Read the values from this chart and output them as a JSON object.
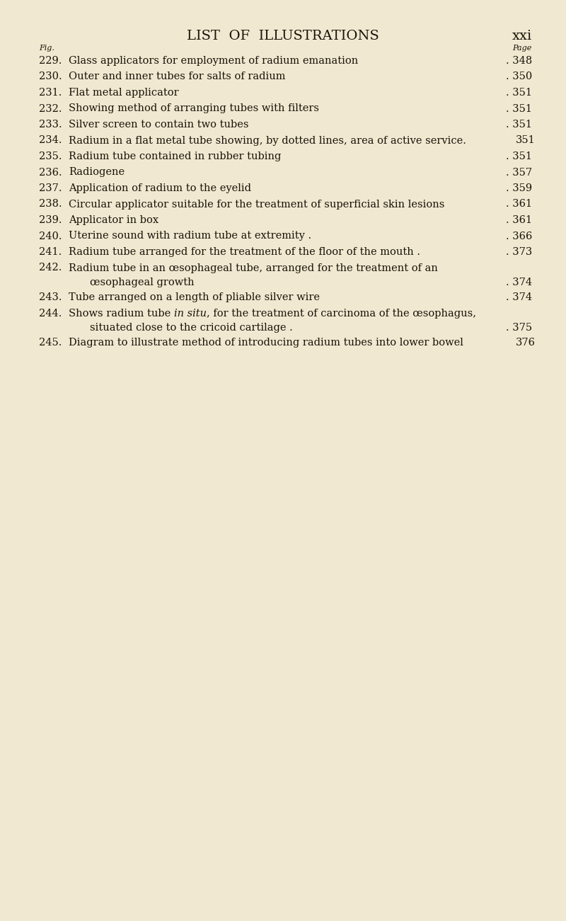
{
  "bg_color": "#f0e8d0",
  "text_color": "#1a1208",
  "title": "LIST  OF  ILLUSTRATIONS",
  "title_right": "xxi",
  "col_left_label": "Fig.",
  "col_right_label": "Page",
  "entries": [
    {
      "num": "229.",
      "text": "Glass applicators for employment of radium emanation",
      "continuation": null,
      "page": "348",
      "italic_phrase": null,
      "italic_after": null,
      "has_dots": true
    },
    {
      "num": "230.",
      "text": "Outer and inner tubes for salts of radium",
      "continuation": null,
      "page": "350",
      "italic_phrase": null,
      "italic_after": null,
      "has_dots": true
    },
    {
      "num": "231.",
      "text": "Flat metal applicator",
      "continuation": null,
      "page": "351",
      "italic_phrase": null,
      "italic_after": null,
      "has_dots": true
    },
    {
      "num": "232.",
      "text": "Showing method of arranging tubes with filters",
      "continuation": null,
      "page": "351",
      "italic_phrase": null,
      "italic_after": null,
      "has_dots": true
    },
    {
      "num": "233.",
      "text": "Silver screen to contain two tubes",
      "continuation": null,
      "page": "351",
      "italic_phrase": null,
      "italic_after": null,
      "has_dots": true
    },
    {
      "num": "234.",
      "text": "Radium in a flat metal tube showing, by dotted lines, area of active service.",
      "continuation": null,
      "page": "351",
      "italic_phrase": null,
      "italic_after": null,
      "has_dots": false
    },
    {
      "num": "235.",
      "text": "Radium tube contained in rubber tubing",
      "continuation": null,
      "page": "351",
      "italic_phrase": null,
      "italic_after": null,
      "has_dots": true
    },
    {
      "num": "236.",
      "text": "Radiogene",
      "continuation": null,
      "page": "357",
      "italic_phrase": null,
      "italic_after": null,
      "has_dots": true
    },
    {
      "num": "237.",
      "text": "Application of radium to the eyelid",
      "continuation": null,
      "page": "359",
      "italic_phrase": null,
      "italic_after": null,
      "has_dots": true
    },
    {
      "num": "238.",
      "text": "Circular applicator suitable for the treatment of superficial skin lesions",
      "continuation": null,
      "page": "361",
      "italic_phrase": null,
      "italic_after": null,
      "has_dots": true
    },
    {
      "num": "239.",
      "text": "Applicator in box",
      "continuation": null,
      "page": "361",
      "italic_phrase": null,
      "italic_after": null,
      "has_dots": true
    },
    {
      "num": "240.",
      "text": "Uterine sound with radium tube at extremity .",
      "continuation": null,
      "page": "366",
      "italic_phrase": null,
      "italic_after": null,
      "has_dots": true
    },
    {
      "num": "241.",
      "text": "Radium tube arranged for the treatment of the floor of the mouth .",
      "continuation": null,
      "page": "373",
      "italic_phrase": null,
      "italic_after": null,
      "has_dots": true
    },
    {
      "num": "242.",
      "text": "Radium tube in an œsophageal tube, arranged for the treatment of an",
      "continuation": "œsophageal growth",
      "page": "374",
      "italic_phrase": null,
      "italic_after": null,
      "has_dots": true
    },
    {
      "num": "243.",
      "text": "Tube arranged on a length of pliable silver wire",
      "continuation": null,
      "page": "374",
      "italic_phrase": null,
      "italic_after": null,
      "has_dots": true
    },
    {
      "num": "244.",
      "text_before_italic": "Shows radium tube ",
      "text_italic": "in situ",
      "text": ", for the treatment of carcinoma of the œsophagus,",
      "continuation": "situated close to the cricoid cartilage .",
      "page": "375",
      "italic_phrase": "in situ",
      "italic_after": ", for the treatment of carcinoma of the œsophagus,",
      "has_dots": true
    },
    {
      "num": "245.",
      "text": "Diagram to illustrate method of introducing radium tubes into lower bowel",
      "continuation": null,
      "page": "376",
      "italic_phrase": null,
      "italic_after": null,
      "has_dots": false
    }
  ]
}
